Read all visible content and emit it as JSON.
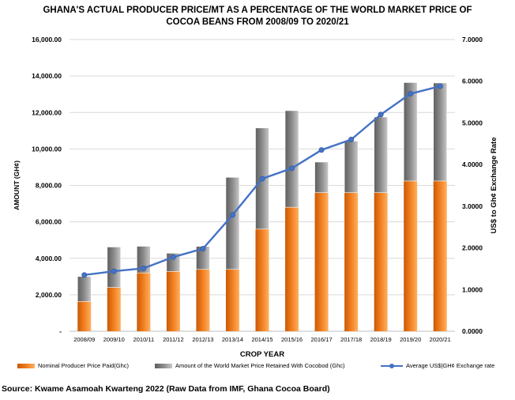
{
  "title_line1": "GHANA'S ACTUAL PRODUCER PRICE/MT AS A PERCENTAGE OF THE WORLD MARKET PRICE  OF",
  "title_line2": "COCOA BEANS FROM  2008/09 TO 2020/21",
  "source": "Source: Kwame Asamoah Kwarteng 2022 (Raw Data from IMF, Ghana Cocoa Board)",
  "colors": {
    "producer": "#f07c1c",
    "retained": "#8c8c8c",
    "rate": "#4472c4",
    "grid": "#d9d9d9"
  },
  "chart_data": {
    "type": "bar",
    "stacked": true,
    "xlabel": "CROP YEAR",
    "ylabel": "AMOUNT (GH¢)",
    "y2label": "US$ to Gh¢ Exchange Rate",
    "ylim": [
      0,
      16000
    ],
    "y2lim": [
      0,
      7
    ],
    "y_ticks": [
      "-",
      "2,000.00",
      "4,000.00",
      "6,000.00",
      "8,000.00",
      "10,000.00",
      "12,000.00",
      "14,000.00",
      "16,000.00"
    ],
    "y2_ticks": [
      "0.0000",
      "1.0000",
      "2.0000",
      "3.0000",
      "4.0000",
      "5.0000",
      "6.0000",
      "7.0000"
    ],
    "grid": true,
    "legend_position": "bottom",
    "categories": [
      "2008/09",
      "2009/10",
      "2010/11",
      "2011/12",
      "2012/13",
      "2013/14",
      "2014/15",
      "2015/16",
      "2016/17",
      "2017/18",
      "2018/19",
      "2019/20",
      "2020/21"
    ],
    "series": [
      {
        "name": "Nominal Producer Price Paid(Ghc)",
        "kind": "bar",
        "axis": "left",
        "values": [
          1632,
          2400,
          3200,
          3280,
          3392,
          3392,
          5600,
          6800,
          7600,
          7600,
          7600,
          8240,
          8240
        ]
      },
      {
        "name": "Amount of the World Market Price Retained With Cocobod (Ghc)",
        "kind": "bar",
        "axis": "left",
        "values": [
          1370,
          2220,
          1460,
          1000,
          1260,
          5050,
          5550,
          5300,
          1680,
          2830,
          4150,
          5400,
          5380
        ]
      },
      {
        "name": "Average US$|GH¢ Exchange rate",
        "kind": "line",
        "axis": "right",
        "values": [
          1.35,
          1.44,
          1.51,
          1.78,
          1.98,
          2.79,
          3.66,
          3.91,
          4.35,
          4.6,
          5.2,
          5.7,
          5.88
        ]
      }
    ]
  }
}
